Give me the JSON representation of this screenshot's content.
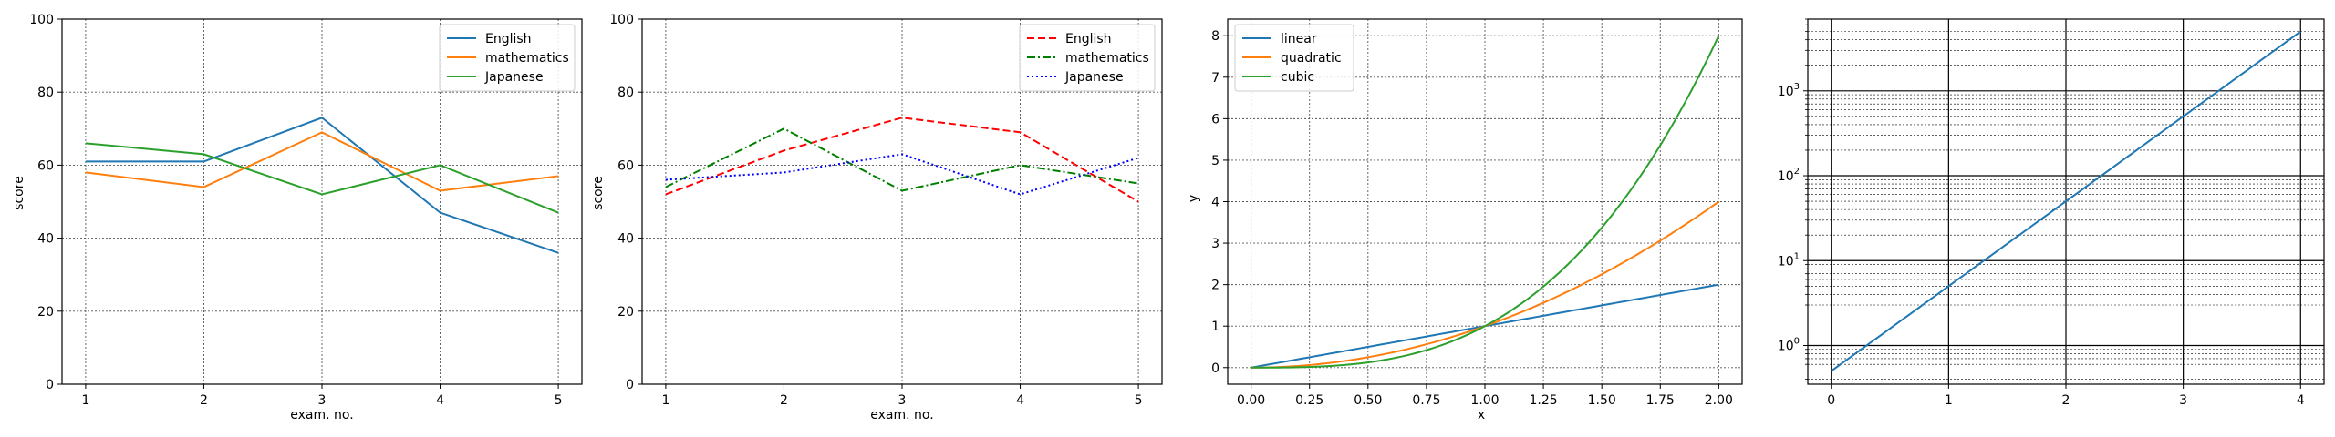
{
  "chart_data": [
    {
      "type": "line",
      "title": "",
      "xlabel": "exam. no.",
      "ylabel": "score",
      "x": [
        1,
        2,
        3,
        4,
        5
      ],
      "xlim": [
        0.8,
        5.2
      ],
      "ylim": [
        0,
        100
      ],
      "xticks": [
        "1",
        "2",
        "3",
        "4",
        "5"
      ],
      "yticks": [
        "0",
        "20",
        "40",
        "60",
        "80",
        "100"
      ],
      "grid": true,
      "legend_position": "upper right",
      "series": [
        {
          "name": "English",
          "values": [
            61,
            61,
            73,
            47,
            36
          ],
          "color": "#1f77b4",
          "linestyle": "solid"
        },
        {
          "name": "mathematics",
          "values": [
            58,
            54,
            69,
            53,
            57
          ],
          "color": "#ff7f0e",
          "linestyle": "solid"
        },
        {
          "name": "Japanese",
          "values": [
            66,
            63,
            52,
            60,
            47
          ],
          "color": "#2ca02c",
          "linestyle": "solid"
        }
      ]
    },
    {
      "type": "line",
      "title": "",
      "xlabel": "exam. no.",
      "ylabel": "score",
      "x": [
        1,
        2,
        3,
        4,
        5
      ],
      "xlim": [
        0.8,
        5.2
      ],
      "ylim": [
        0,
        100
      ],
      "xticks": [
        "1",
        "2",
        "3",
        "4",
        "5"
      ],
      "yticks": [
        "0",
        "20",
        "40",
        "60",
        "80",
        "100"
      ],
      "grid": true,
      "legend_position": "upper right",
      "series": [
        {
          "name": "English",
          "values": [
            52,
            64,
            73,
            69,
            50
          ],
          "color": "#ff0000",
          "linestyle": "dashed"
        },
        {
          "name": "mathematics",
          "values": [
            54,
            70,
            53,
            60,
            55
          ],
          "color": "#008000",
          "linestyle": "dashdot"
        },
        {
          "name": "Japanese",
          "values": [
            56,
            58,
            63,
            52,
            62
          ],
          "color": "#0000ff",
          "linestyle": "dotted"
        }
      ]
    },
    {
      "type": "line",
      "title": "",
      "xlabel": "x",
      "ylabel": "y",
      "x_range": [
        0,
        2
      ],
      "xlim": [
        -0.1,
        2.1
      ],
      "ylim": [
        -0.4,
        8.4
      ],
      "xticks": [
        "0.00",
        "0.25",
        "0.50",
        "0.75",
        "1.00",
        "1.25",
        "1.50",
        "1.75",
        "2.00"
      ],
      "yticks": [
        "0",
        "1",
        "2",
        "3",
        "4",
        "5",
        "6",
        "7",
        "8"
      ],
      "grid": true,
      "legend_position": "upper left",
      "series": [
        {
          "name": "linear",
          "function": "x",
          "color": "#1f77b4",
          "linestyle": "solid"
        },
        {
          "name": "quadratic",
          "function": "x^2",
          "color": "#ff7f0e",
          "linestyle": "solid"
        },
        {
          "name": "cubic",
          "function": "x^3",
          "color": "#2ca02c",
          "linestyle": "solid"
        }
      ]
    },
    {
      "type": "line",
      "title": "",
      "xlabel": "",
      "ylabel": "",
      "yscale": "log",
      "x": [
        0,
        4
      ],
      "xlim": [
        -0.2,
        4.2
      ],
      "ylim": [
        0.35,
        7000
      ],
      "xticks": [
        "0",
        "1",
        "2",
        "3",
        "4"
      ],
      "yticks": [
        {
          "base": "10",
          "exp": "0"
        },
        {
          "base": "10",
          "exp": "1"
        },
        {
          "base": "10",
          "exp": "2"
        },
        {
          "base": "10",
          "exp": "3"
        }
      ],
      "grid": "major and minor",
      "series": [
        {
          "function": "0.5 * 10^x",
          "values": [
            0.5,
            5000
          ],
          "color": "#1f77b4",
          "linestyle": "solid"
        }
      ]
    }
  ]
}
